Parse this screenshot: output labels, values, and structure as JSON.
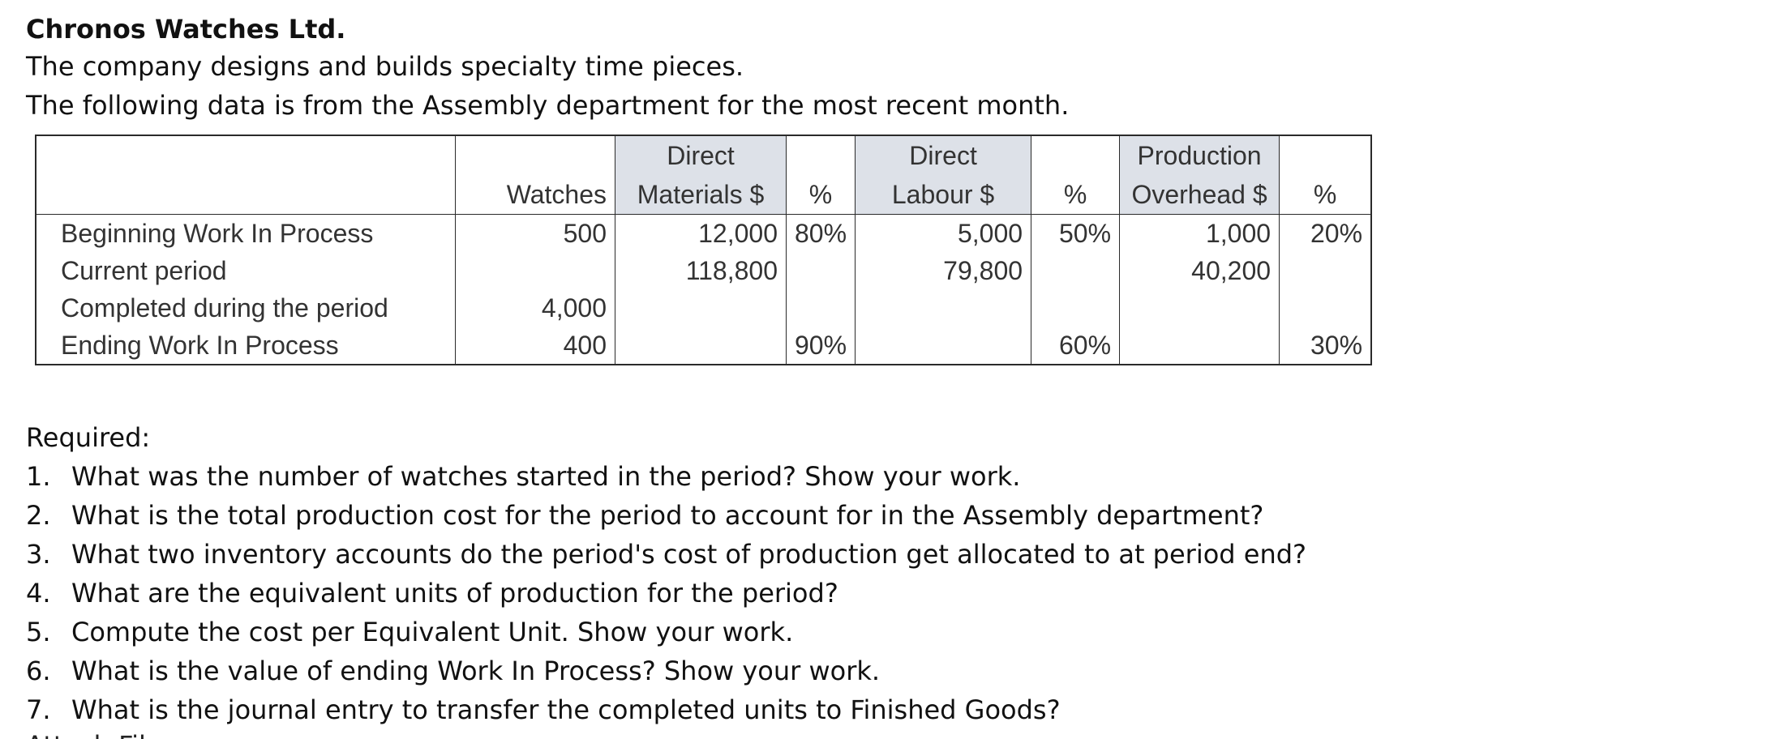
{
  "document": {
    "title": "Chronos Watches Ltd.",
    "intro": [
      "The company designs and builds specialty time pieces.",
      "The following data is from the Assembly department for the most recent month."
    ]
  },
  "table": {
    "header_row1": [
      "",
      "",
      "Direct",
      "",
      "Direct",
      "",
      "Production",
      ""
    ],
    "header_row2": [
      "",
      "Watches",
      "Materials $",
      "%",
      "Labour $",
      "%",
      "Overhead $",
      "%"
    ],
    "rows": [
      {
        "label": "Beginning Work In Process",
        "watches": "500",
        "dm": "12,000",
        "dm_pct": "80%",
        "dl": "5,000",
        "dl_pct": "50%",
        "oh": "1,000",
        "oh_pct": "20%"
      },
      {
        "label": "Current period",
        "watches": "",
        "dm": "118,800",
        "dm_pct": "",
        "dl": "79,800",
        "dl_pct": "",
        "oh": "40,200",
        "oh_pct": ""
      },
      {
        "label": "Completed during the period",
        "watches": "4,000",
        "dm": "",
        "dm_pct": "",
        "dl": "",
        "dl_pct": "",
        "oh": "",
        "oh_pct": ""
      },
      {
        "label": "Ending Work In Process",
        "watches": "400",
        "dm": "",
        "dm_pct": "90%",
        "dl": "",
        "dl_pct": "60%",
        "oh": "",
        "oh_pct": "30%"
      }
    ]
  },
  "required": {
    "heading": "Required:",
    "questions": [
      {
        "num": "1.",
        "text": "What was the number of watches started in the period? Show your work."
      },
      {
        "num": "2.",
        "text": "What is the total production cost for the period to account for in the Assembly department?"
      },
      {
        "num": "3.",
        "text": "What two inventory accounts do the period's cost of production get allocated to at period end?"
      },
      {
        "num": "4.",
        "text": "What are the equivalent units of production for the period?"
      },
      {
        "num": "5.",
        "text": "Compute the cost per Equivalent Unit. Show your work."
      },
      {
        "num": "6.",
        "text": "What is the value of ending Work In Process? Show your work."
      },
      {
        "num": "7.",
        "text": "What is the journal entry to transfer the completed units to Finished Goods?"
      }
    ],
    "cutoff_text": "Attach File"
  }
}
